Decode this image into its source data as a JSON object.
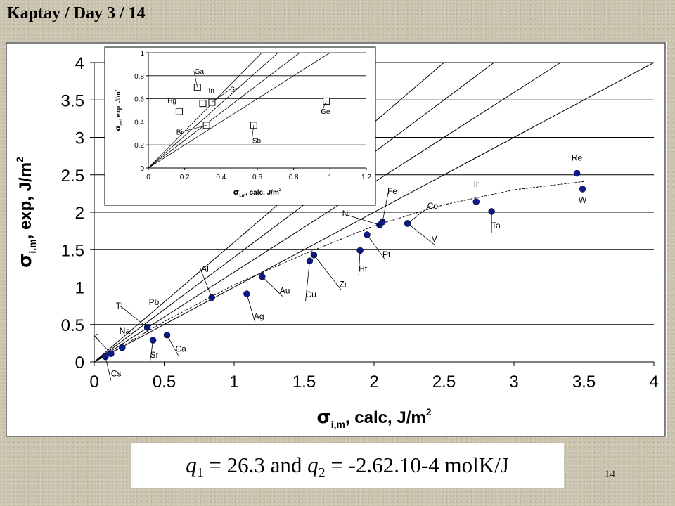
{
  "header": {
    "title": "Kaptay / Day 3 / 14"
  },
  "slide_number": "14",
  "formula": {
    "q1_var": "q",
    "q1_sub": "1",
    "q1_rest": " = 26.3 and ",
    "q2_var": "q",
    "q2_sub": "2",
    "q2_rest": " = -2.62.10-4 molK/J"
  },
  "chart_data": [
    {
      "type": "scatter",
      "id": "main",
      "xlim": [
        0,
        4
      ],
      "ylim": [
        0,
        4
      ],
      "xticks": [
        "0",
        "0.5",
        "1",
        "1.5",
        "2",
        "2.5",
        "3",
        "3.5",
        "4"
      ],
      "yticks": [
        "0",
        "0.5",
        "1",
        "1.5",
        "2",
        "2.5",
        "3",
        "3.5",
        "4"
      ],
      "xlabel": {
        "sym": "σ",
        "sub": "i,m",
        "text": ", calc, J/m",
        "sup": "2"
      },
      "ylabel": {
        "sym": "σ",
        "sub": "i,m",
        "text": ", exp, J/m",
        "sup": "2"
      },
      "grid": "horizontal",
      "reference_lines": [
        1.0,
        1.2,
        1.4,
        1.6
      ],
      "points": [
        {
          "label": "Cs",
          "x": 0.08,
          "y": 0.07
        },
        {
          "label": "K",
          "x": 0.12,
          "y": 0.11
        },
        {
          "label": "Na",
          "x": 0.2,
          "y": 0.19
        },
        {
          "label": "Tl",
          "x": 0.38,
          "y": 0.46
        },
        {
          "label": "Sr",
          "x": 0.42,
          "y": 0.29
        },
        {
          "label": "Ca",
          "x": 0.52,
          "y": 0.36
        },
        {
          "label": "Al",
          "x": 0.84,
          "y": 0.86
        },
        {
          "label": "Ag",
          "x": 1.09,
          "y": 0.91
        },
        {
          "label": "Au",
          "x": 1.2,
          "y": 1.14
        },
        {
          "label": "Cu",
          "x": 1.54,
          "y": 1.35
        },
        {
          "label": "Zr",
          "x": 1.57,
          "y": 1.43
        },
        {
          "label": "Hf",
          "x": 1.9,
          "y": 1.49
        },
        {
          "label": "Pt",
          "x": 1.95,
          "y": 1.7
        },
        {
          "label": "Ni",
          "x": 2.04,
          "y": 1.83
        },
        {
          "label": "Fe",
          "x": 2.06,
          "y": 1.87
        },
        {
          "label": "V",
          "x": 2.24,
          "y": 1.85
        },
        {
          "label": "Co",
          "x": 2.24,
          "y": 1.85
        },
        {
          "label": "Ir",
          "x": 2.73,
          "y": 2.14
        },
        {
          "label": "Ta",
          "x": 2.84,
          "y": 2.01
        },
        {
          "label": "Re",
          "x": 3.45,
          "y": 2.52
        },
        {
          "label": "W",
          "x": 3.49,
          "y": 2.31
        }
      ],
      "fit_curve": [
        [
          0.05,
          0.045
        ],
        [
          0.5,
          0.54
        ],
        [
          1.0,
          1.03
        ],
        [
          1.5,
          1.44
        ],
        [
          2.0,
          1.82
        ],
        [
          2.5,
          2.1
        ],
        [
          3.0,
          2.3
        ],
        [
          3.5,
          2.41
        ]
      ]
    },
    {
      "type": "scatter",
      "id": "inset",
      "xlim": [
        0,
        1.2
      ],
      "ylim": [
        0,
        1
      ],
      "xticks": [
        "0",
        "0.2",
        "0.4",
        "0.6",
        "0.8",
        "1",
        "1.2"
      ],
      "yticks": [
        "0",
        "0.2",
        "0.4",
        "0.6",
        "0.8",
        "1"
      ],
      "xlabel": {
        "sym": "σ",
        "sub": "i,m",
        "text": ", calc, J/m",
        "sup": "2"
      },
      "ylabel": {
        "sym": "σ",
        "sub": "i,m",
        "text": ", exp, J/m",
        "sup": "2"
      },
      "grid": "horizontal",
      "reference_lines": [
        1.0,
        1.2,
        1.4,
        1.6
      ],
      "points": [
        {
          "label": "Ga",
          "x": 0.27,
          "y": 0.7
        },
        {
          "label": "Hg",
          "x": 0.17,
          "y": 0.49
        },
        {
          "label": "In",
          "x": 0.3,
          "y": 0.56
        },
        {
          "label": "Sn",
          "x": 0.35,
          "y": 0.57
        },
        {
          "label": "Bi",
          "x": 0.32,
          "y": 0.37
        },
        {
          "label": "Sb",
          "x": 0.58,
          "y": 0.37
        },
        {
          "label": "Ge",
          "x": 0.98,
          "y": 0.58
        }
      ]
    }
  ]
}
